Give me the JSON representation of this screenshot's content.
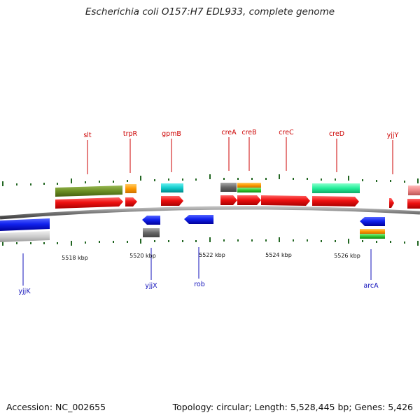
{
  "title": "Escherichia coli O157:H7 EDL933, complete genome",
  "footer": {
    "accession": "Accession: NC_002655",
    "summary": "Topology: circular; Length: 5,528,445 bp; Genes: 5,426"
  },
  "kbp_labels": [
    "5518 kbp",
    "5520 kbp",
    "5522 kbp",
    "5524 kbp",
    "5526 kbp"
  ],
  "top_genes": [
    "slt",
    "trpR",
    "gpmB",
    "creA",
    "creB",
    "creC",
    "creD",
    "yjjY"
  ],
  "bottom_genes": [
    "yjjK",
    "yjjX",
    "rob",
    "arcA"
  ],
  "colors": {
    "gene_red": "#ee1111",
    "gene_blue": "#1122ee",
    "olive": "#6b8e23",
    "orange": "#ff9900",
    "cyan": "#11cccc",
    "gray": "#777777",
    "green": "#33cc33",
    "spring": "#22ee99",
    "pink": "#ee8888",
    "backbone": "#777777",
    "tick": "#226622"
  }
}
